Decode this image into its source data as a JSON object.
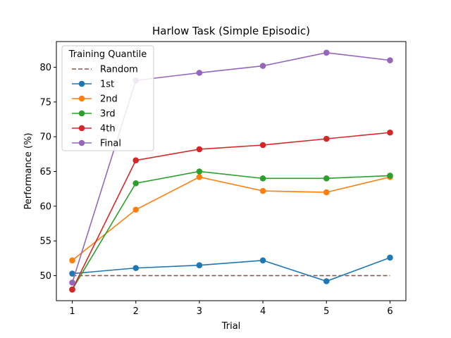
{
  "chart_data": {
    "type": "line",
    "title": "Harlow Task (Simple Episodic)",
    "xlabel": "Trial",
    "ylabel": "Performance (%)",
    "x": [
      1,
      2,
      3,
      4,
      5,
      6
    ],
    "xticks": [
      "1",
      "2",
      "3",
      "4",
      "5",
      "6"
    ],
    "yticks": [
      "50",
      "55",
      "60",
      "65",
      "70",
      "75",
      "80"
    ],
    "xlim": [
      0.75,
      6.25
    ],
    "ylim": [
      46.4,
      83.7
    ],
    "grid": false,
    "legend": {
      "title": "Training Quantile",
      "placement": "top-left"
    },
    "baseline": {
      "name": "Random",
      "value": 50,
      "color": "#8c564b",
      "style": "dashed"
    },
    "series": [
      {
        "name": "1st",
        "color": "#1f77b4",
        "values": [
          50.3,
          51.1,
          51.5,
          52.2,
          49.2,
          52.6
        ]
      },
      {
        "name": "2nd",
        "color": "#ff7f0e",
        "values": [
          52.2,
          59.5,
          64.2,
          62.2,
          62.0,
          64.2
        ]
      },
      {
        "name": "3rd",
        "color": "#2ca02c",
        "values": [
          48.0,
          63.3,
          65.0,
          64.0,
          64.0,
          64.4
        ]
      },
      {
        "name": "4th",
        "color": "#d62728",
        "values": [
          48.0,
          66.6,
          68.2,
          68.8,
          69.7,
          70.6
        ]
      },
      {
        "name": "Final",
        "color": "#9467bd",
        "values": [
          49.0,
          78.1,
          79.2,
          80.2,
          82.1,
          81.0
        ]
      }
    ]
  }
}
